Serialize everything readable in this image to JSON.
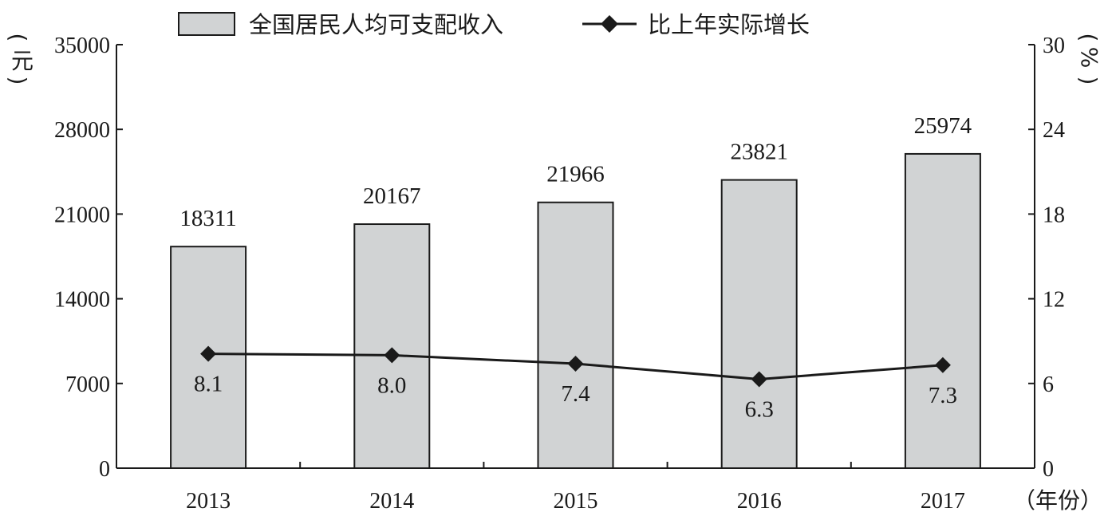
{
  "chart_data": {
    "type": "bar",
    "categories": [
      "2013",
      "2014",
      "2015",
      "2016",
      "2017"
    ],
    "series": [
      {
        "name": "全国居民人均可支配收入",
        "type": "bar",
        "axis": "left",
        "values": [
          18311,
          20167,
          21966,
          23821,
          25974
        ],
        "labels": [
          "18311",
          "20167",
          "21966",
          "23821",
          "25974"
        ],
        "color": "#d1d3d4"
      },
      {
        "name": "比上年实际增长",
        "type": "line",
        "axis": "right",
        "marker": "diamond",
        "values": [
          8.1,
          8.0,
          7.4,
          6.3,
          7.3
        ],
        "labels": [
          "8.1",
          "8.0",
          "7.4",
          "6.3",
          "7.3"
        ],
        "color": "#1a1a1a"
      }
    ],
    "y_left": {
      "unit_label": "（元）",
      "ylim": [
        0,
        35000
      ],
      "ticks": [
        "0",
        "7000",
        "14000",
        "21000",
        "28000",
        "35000"
      ]
    },
    "y_right": {
      "unit_label": "（%）",
      "ylim": [
        0,
        30
      ],
      "ticks": [
        "0",
        "6",
        "12",
        "18",
        "24",
        "30"
      ]
    },
    "x_unit_label": "（年份）",
    "legend_position": "top",
    "grid": false
  }
}
